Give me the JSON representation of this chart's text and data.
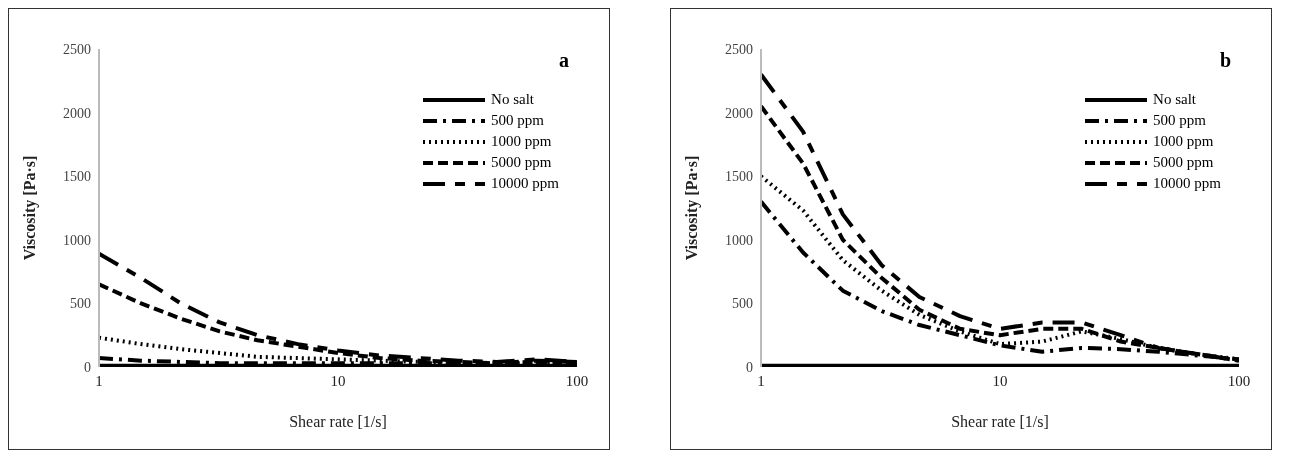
{
  "chart_data": [
    {
      "type": "line",
      "title": "a",
      "xlabel": "Shear rate [1/s]",
      "ylabel": "Viscosity [Pa·s]",
      "log": "x",
      "xlim": [
        1,
        100
      ],
      "xticks": [
        1,
        10,
        100
      ],
      "ylim": [
        0,
        2500
      ],
      "yticks": [
        0,
        500,
        1000,
        1500,
        2000,
        2500
      ],
      "grid": false,
      "legend": "top right",
      "marker": "none",
      "x": [
        1,
        1.5,
        2.2,
        3.2,
        4.6,
        6.8,
        10,
        15,
        22,
        32,
        46,
        68,
        100
      ],
      "series": [
        {
          "name": "No salt",
          "color": "#000000",
          "line_style": "solid",
          "values": [
            10,
            10,
            10,
            10,
            10,
            10,
            10,
            10,
            10,
            10,
            10,
            10,
            10
          ]
        },
        {
          "name": "500 ppm",
          "color": "#000000",
          "line_style": "dashed",
          "values": [
            70,
            50,
            40,
            30,
            30,
            30,
            30,
            30,
            30,
            30,
            30,
            50,
            40
          ]
        },
        {
          "name": "1000 ppm",
          "color": "#000000",
          "line_style": "dotted",
          "values": [
            230,
            180,
            140,
            110,
            80,
            70,
            60,
            50,
            40,
            30,
            30,
            30,
            30
          ]
        },
        {
          "name": "5000 ppm",
          "color": "#000000",
          "line_style": "dashed",
          "values": [
            650,
            500,
            380,
            280,
            210,
            160,
            110,
            70,
            50,
            40,
            30,
            40,
            30
          ]
        },
        {
          "name": "10000 ppm",
          "color": "#000000",
          "line_style": "dashed",
          "values": [
            890,
            700,
            500,
            350,
            250,
            180,
            130,
            90,
            70,
            50,
            40,
            60,
            40
          ]
        }
      ]
    },
    {
      "type": "line",
      "title": "b",
      "xlabel": "Shear rate [1/s]",
      "ylabel": "Viscosity [Pa·s]",
      "log": "x",
      "xlim": [
        1,
        100
      ],
      "xticks": [
        1,
        10,
        100
      ],
      "ylim": [
        0,
        2500
      ],
      "yticks": [
        0,
        500,
        1000,
        1500,
        2000,
        2500
      ],
      "grid": false,
      "legend": "top right",
      "marker": "none",
      "x": [
        1,
        1.5,
        2.2,
        3.2,
        4.6,
        6.8,
        10,
        15,
        22,
        32,
        46,
        68,
        100
      ],
      "series": [
        {
          "name": "No salt",
          "color": "#000000",
          "line_style": "solid",
          "values": [
            10,
            10,
            10,
            10,
            10,
            10,
            10,
            10,
            10,
            10,
            10,
            10,
            10
          ]
        },
        {
          "name": "500 ppm",
          "color": "#000000",
          "line_style": "dashed",
          "values": [
            1300,
            900,
            600,
            440,
            330,
            250,
            170,
            120,
            150,
            140,
            120,
            90,
            60
          ]
        },
        {
          "name": "1000 ppm",
          "color": "#000000",
          "line_style": "dotted",
          "values": [
            1500,
            1230,
            840,
            600,
            410,
            280,
            180,
            200,
            280,
            220,
            150,
            100,
            60
          ]
        },
        {
          "name": "5000 ppm",
          "color": "#000000",
          "line_style": "dashed",
          "values": [
            2050,
            1600,
            1000,
            700,
            450,
            300,
            250,
            300,
            300,
            200,
            150,
            100,
            50
          ]
        },
        {
          "name": "10000 ppm",
          "color": "#000000",
          "line_style": "dashed",
          "values": [
            2300,
            1850,
            1200,
            800,
            550,
            400,
            300,
            350,
            350,
            250,
            150,
            100,
            50
          ]
        }
      ]
    }
  ]
}
